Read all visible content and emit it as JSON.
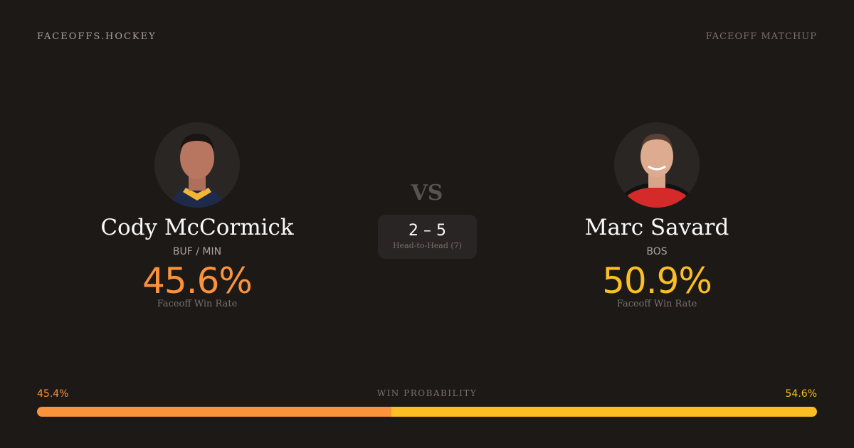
{
  "header": {
    "brand": "FACEOFFS.HOCKEY",
    "tag": "FACEOFF MATCHUP"
  },
  "left": {
    "name": "Cody McCormick",
    "team": "BUF / MIN",
    "rate": "45.6%",
    "rate_label": "Faceoff Win Rate",
    "color": "#fb923c"
  },
  "right": {
    "name": "Marc Savard",
    "team": "BOS",
    "rate": "50.9%",
    "rate_label": "Faceoff Win Rate",
    "color": "#fbbf24"
  },
  "versus": {
    "vs": "VS",
    "score": "2 – 5",
    "label": "Head-to-Head (7)"
  },
  "probability": {
    "label": "WIN PROBABILITY",
    "left": "45.4%",
    "right": "54.6%",
    "left_value": 45.4,
    "right_value": 54.6
  }
}
